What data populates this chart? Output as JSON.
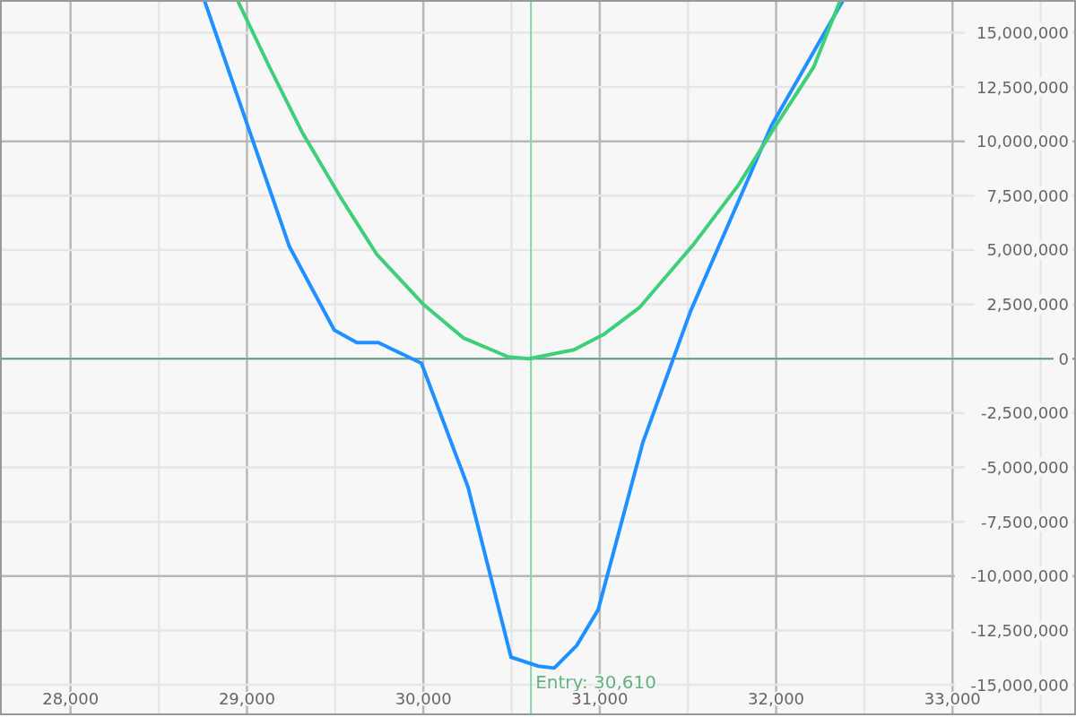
{
  "chart_data": {
    "type": "line",
    "xlim": [
      27600,
      33700
    ],
    "ylim": [
      -16400000,
      16500000
    ],
    "xticks": [
      {
        "value": 28000,
        "label": "28,000"
      },
      {
        "value": 28500,
        "label": null
      },
      {
        "value": 29000,
        "label": "29,000"
      },
      {
        "value": 29500,
        "label": null
      },
      {
        "value": 30000,
        "label": "30,000"
      },
      {
        "value": 30500,
        "label": null
      },
      {
        "value": 31000,
        "label": "31,000"
      },
      {
        "value": 31500,
        "label": null
      },
      {
        "value": 32000,
        "label": "32,000"
      },
      {
        "value": 32500,
        "label": null
      },
      {
        "value": 33000,
        "label": "33,000"
      },
      {
        "value": 33500,
        "label": null
      }
    ],
    "yticks": [
      {
        "value": -15000000,
        "label": "-15,000,000"
      },
      {
        "value": -12500000,
        "label": "-12,500,000"
      },
      {
        "value": -10000000,
        "label": "-10,000,000"
      },
      {
        "value": -7500000,
        "label": "-7,500,000"
      },
      {
        "value": -5000000,
        "label": "-5,000,000"
      },
      {
        "value": -2500000,
        "label": "-2,500,000"
      },
      0,
      {
        "value": 2500000,
        "label": "2,500,000"
      },
      {
        "value": 5000000,
        "label": "5,000,000"
      },
      {
        "value": 7500000,
        "label": "7,500,000"
      },
      {
        "value": 10000000,
        "label": "10,000,000"
      },
      {
        "value": 12500000,
        "label": "12,500,000"
      },
      {
        "value": 15000000,
        "label": "15,000,000"
      }
    ],
    "grid": true,
    "series": [
      {
        "color": "#1e90ff",
        "x": [
          28758,
          29241,
          29495,
          29623,
          29745,
          29989,
          30253,
          30497,
          30650,
          30742,
          30869,
          30991,
          31245,
          31515,
          31973,
          32380
        ],
        "values": [
          16500000,
          5150000,
          1320000,
          740000,
          740000,
          -210000,
          -5900000,
          -13730000,
          -14140000,
          -14230000,
          -13200000,
          -11550000,
          -3840000,
          2190000,
          10720000,
          16490000
        ]
      },
      {
        "color": "#3ecf7a",
        "x": [
          28946,
          29124,
          29312,
          29531,
          29734,
          30004,
          30228,
          30482,
          30599,
          30854,
          31021,
          31225,
          31530,
          31784,
          31988,
          32212,
          32364
        ],
        "values": [
          16490000,
          13480000,
          10430000,
          7420000,
          4820000,
          2470000,
          950000,
          80000,
          0,
          410000,
          1110000,
          2350000,
          5240000,
          7960000,
          10600000,
          13400000,
          16490000
        ]
      }
    ],
    "ref_lines": [
      {
        "axis": "y",
        "value": 0,
        "color": "#5a9e7e"
      },
      {
        "axis": "x",
        "value": 30610,
        "label": "Entry: 30,610",
        "color": "#7fdb9e"
      }
    ]
  }
}
